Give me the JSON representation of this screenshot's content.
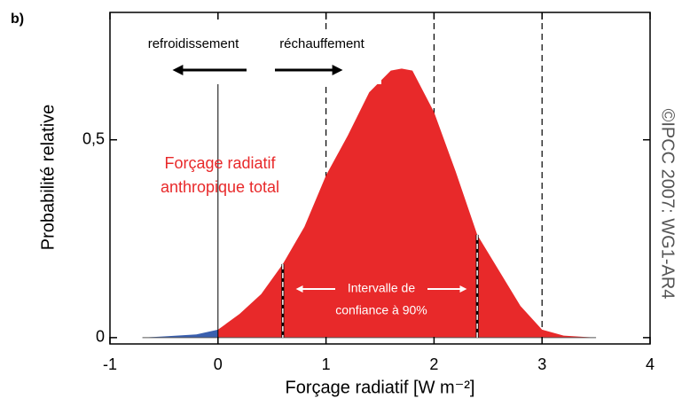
{
  "chart_data": {
    "type": "area",
    "panel_label": "b)",
    "xlabel": "Forçage radiatif [W m⁻²]",
    "ylabel": "Probabilité relative",
    "credit": "©IPCC 2007: WG1-AR4",
    "x": [
      -0.7,
      -0.5,
      -0.2,
      0,
      0.2,
      0.4,
      0.6,
      0.8,
      1.0,
      1.2,
      1.4,
      1.6,
      1.7,
      1.8,
      2.0,
      2.2,
      2.4,
      2.6,
      2.8,
      3.0,
      3.2,
      3.5
    ],
    "values": [
      0,
      0.003,
      0.008,
      0.02,
      0.06,
      0.11,
      0.186,
      0.28,
      0.41,
      0.51,
      0.62,
      0.675,
      0.68,
      0.675,
      0.57,
      0.42,
      0.26,
      0.17,
      0.08,
      0.02,
      0.005,
      0
    ],
    "colors": {
      "negative": "#3a5fae",
      "positive": "#e8292a"
    },
    "xlim": [
      -1,
      4
    ],
    "xticks": [
      -1,
      0,
      1,
      2,
      3,
      4
    ],
    "ylim": [
      -0.016,
      0.822
    ],
    "yticks": [
      0,
      {
        "value": 0.5,
        "label": "0,5"
      }
    ],
    "reference_lines": [
      {
        "x": 0,
        "style": "solid"
      },
      {
        "x": 1,
        "style": "dashed"
      },
      {
        "x": 2,
        "style": "dashed"
      },
      {
        "x": 3,
        "style": "dashed"
      }
    ],
    "confidence_interval": [
      0.6,
      2.4
    ],
    "annotations": {
      "cooling": "refroidissement",
      "warming": "réchauffement",
      "total_label": [
        "Forçage radiatif",
        "anthropique total"
      ],
      "interval_label": [
        "Intervalle de",
        "confiance à 90%"
      ]
    }
  }
}
